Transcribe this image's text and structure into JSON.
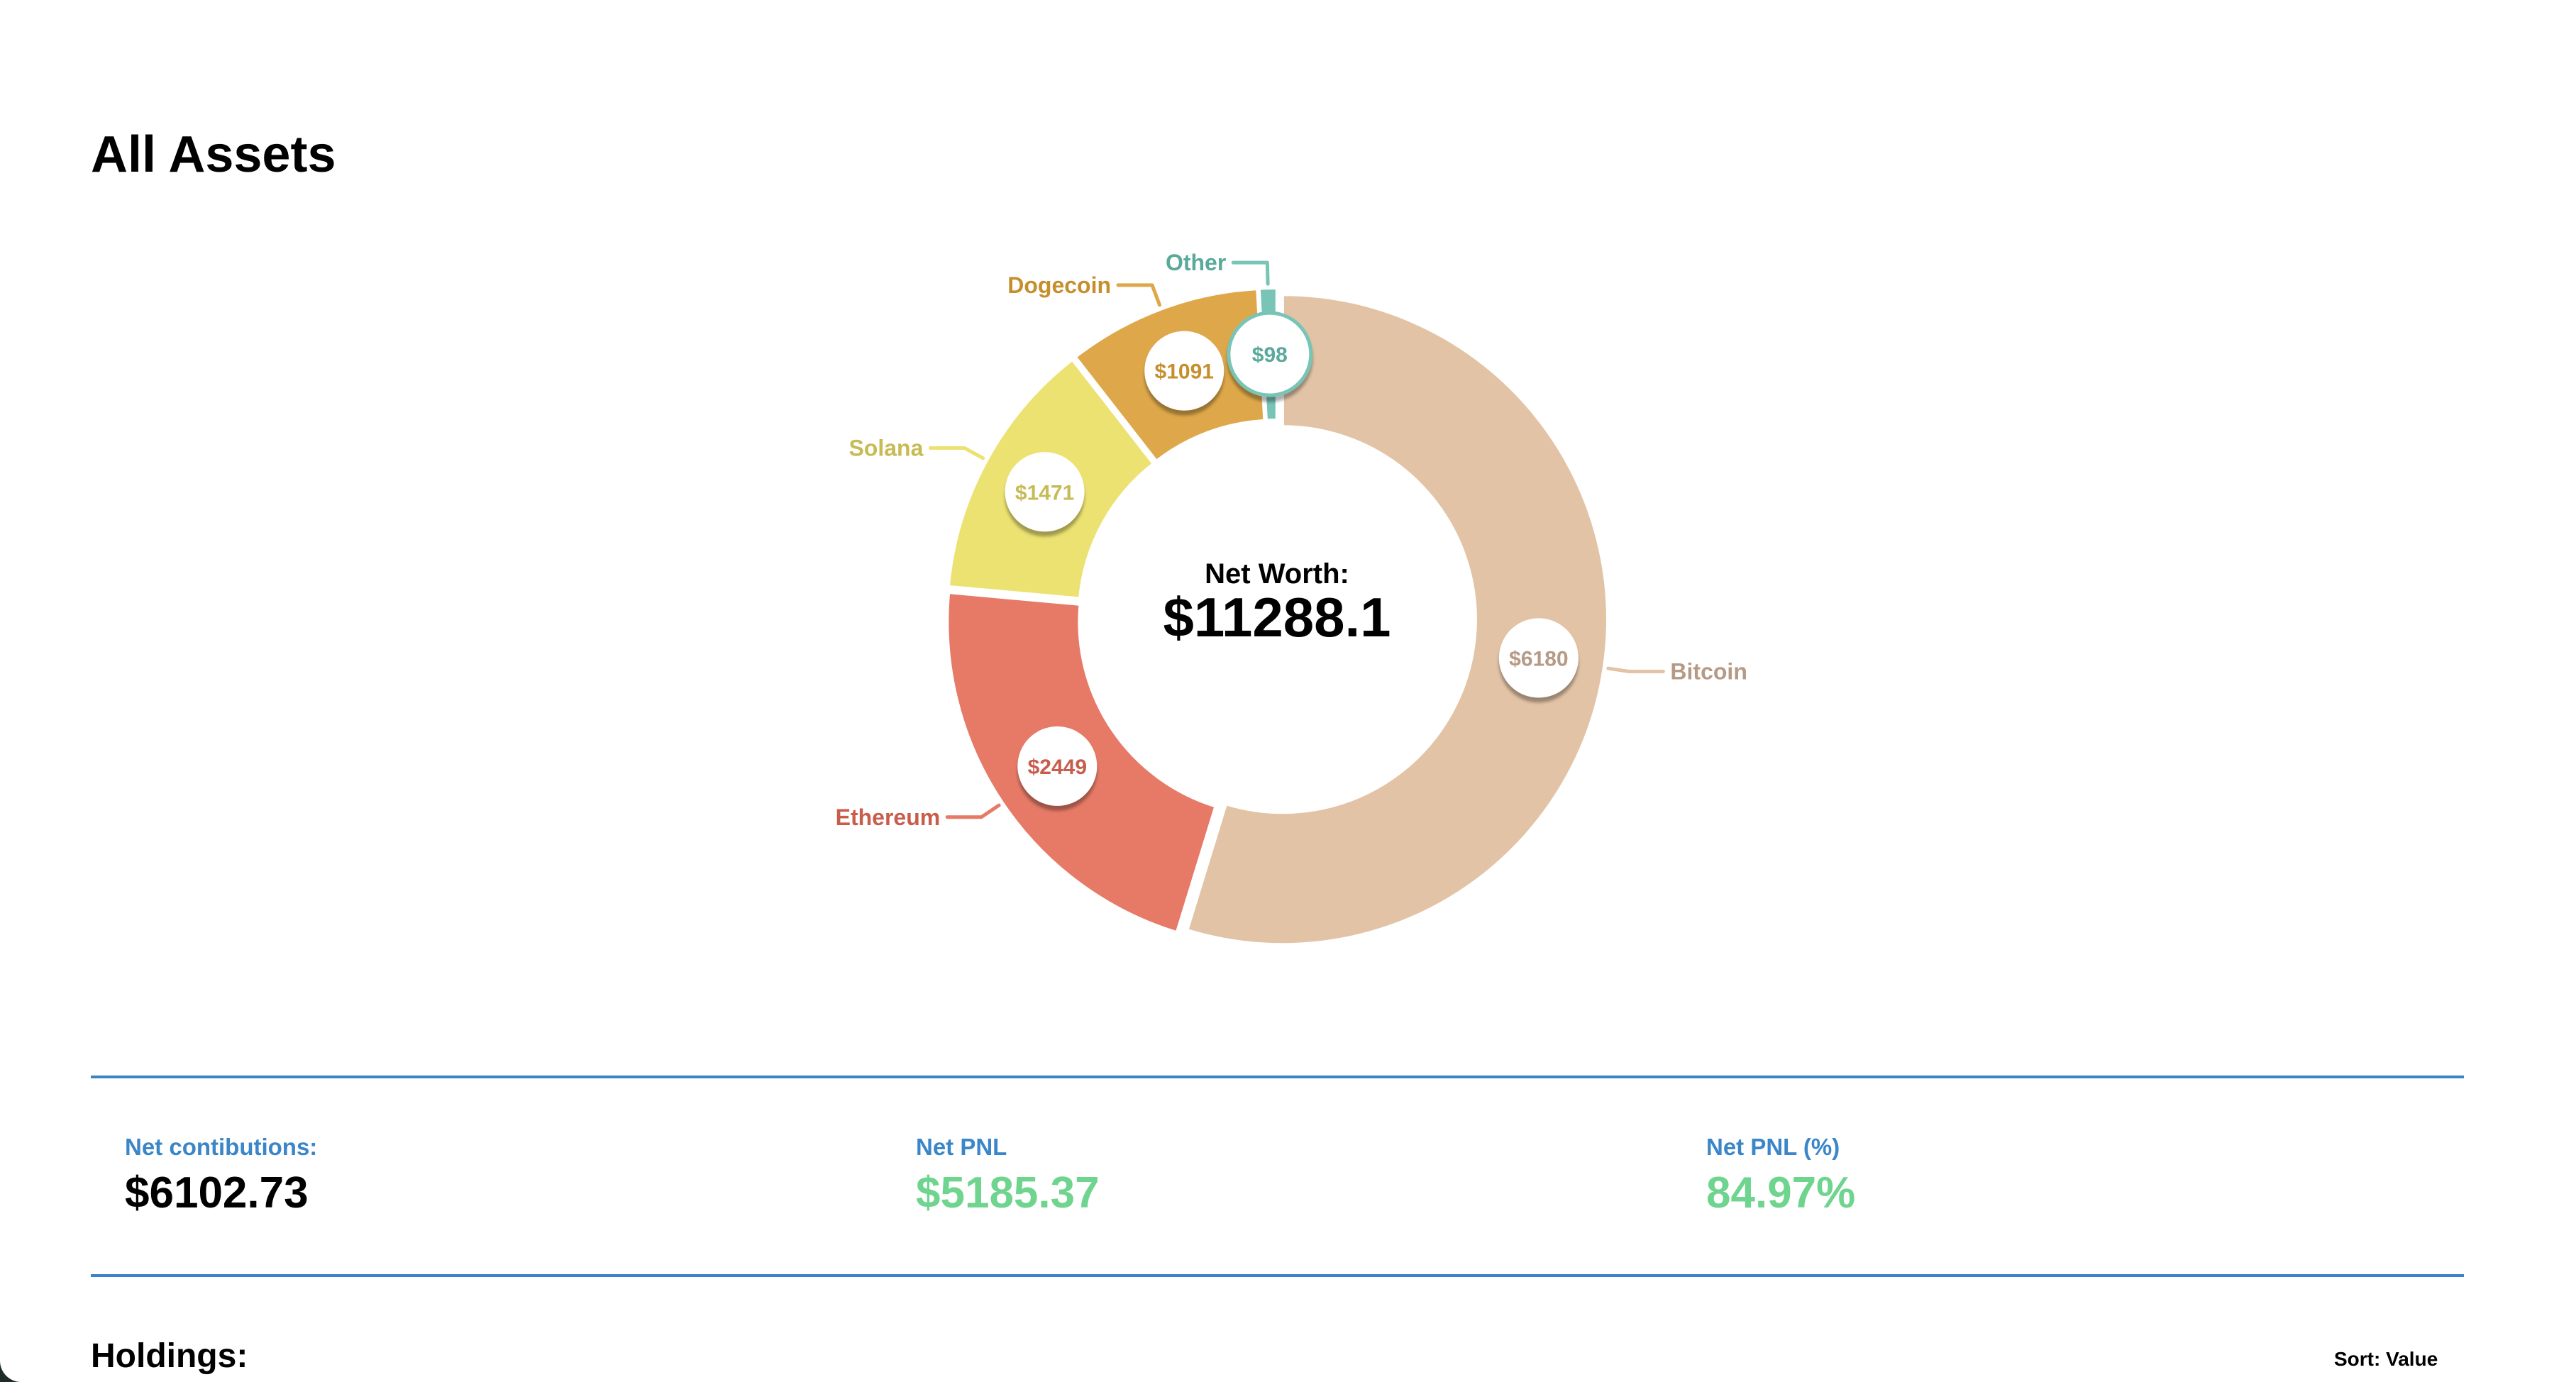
{
  "page": {
    "title": "All Assets"
  },
  "chart_data": {
    "type": "pie",
    "center_label": "Net Worth:",
    "center_value": "$11288.1",
    "slices": [
      {
        "name": "Bitcoin",
        "value": 6180,
        "label": "$6180",
        "color": "#e2c3a6",
        "text_color": "#b59a85"
      },
      {
        "name": "Ethereum",
        "value": 2449,
        "label": "$2449",
        "color": "#e67a67",
        "text_color": "#c95d4c"
      },
      {
        "name": "Solana",
        "value": 1471,
        "label": "$1471",
        "color": "#ece272",
        "text_color": "#c7bb55"
      },
      {
        "name": "Dogecoin",
        "value": 1091,
        "label": "$1091",
        "color": "#dea84a",
        "text_color": "#c58f2e"
      },
      {
        "name": "Other",
        "value": 98,
        "label": "$98",
        "color": "#78c4b6",
        "text_color": "#5aa99b"
      }
    ]
  },
  "stats": {
    "net_contributions": {
      "label": "Net contibutions:",
      "value": "$6102.73",
      "color": "#000000"
    },
    "net_pnl": {
      "label": "Net PNL",
      "value": "$5185.37",
      "color": "#6ed48e"
    },
    "net_pnl_pct": {
      "label": "Net PNL (%)",
      "value": "84.97%",
      "color": "#6ed48e"
    }
  },
  "holdings": {
    "title": "Holdings:",
    "sort_label": "Sort: Value"
  }
}
